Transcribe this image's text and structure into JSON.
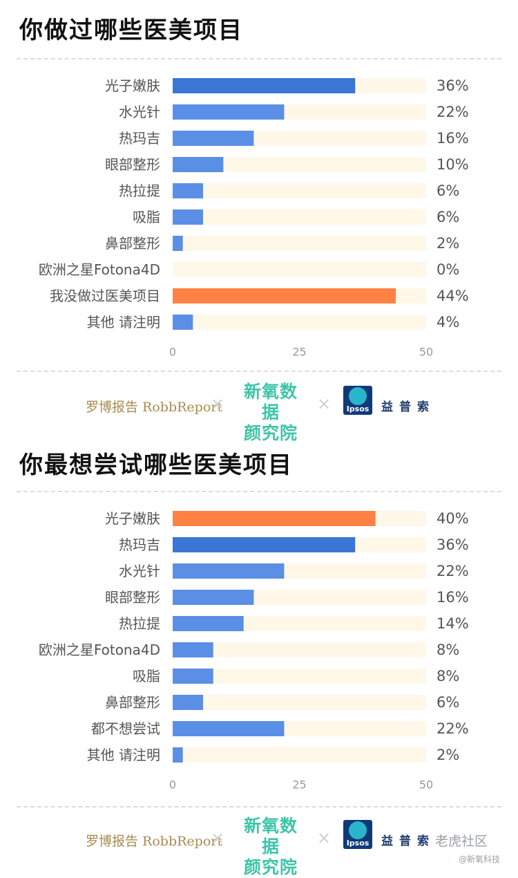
{
  "colors": {
    "bar_primary": "#5b8fe6",
    "bar_top": "#3a76d6",
    "bar_highlight": "#ff8143",
    "track": "#fff8e9",
    "label": "#555555",
    "value": "#555555",
    "tick": "#999999"
  },
  "logos": {
    "robb": "罗博报告 RobbReport",
    "xinyang_line1": "新氧数据",
    "xinyang_line2": "颜究院",
    "ipsos_word": "Ipsos",
    "ipsos_cn": "益普索",
    "separator": "×"
  },
  "watermark": {
    "main": "老虎社区",
    "sub": "@新氧科技"
  },
  "chart_data": [
    {
      "type": "bar",
      "orientation": "horizontal",
      "title": "你做过哪些医美项目",
      "categories": [
        "光子嫩肤",
        "水光针",
        "热玛吉",
        "眼部整形",
        "热拉提",
        "吸脂",
        "鼻部整形",
        "欧洲之星Fotona4D",
        "我没做过医美项目",
        "其他 请注明"
      ],
      "values": [
        36,
        22,
        16,
        10,
        6,
        6,
        2,
        0,
        44,
        4
      ],
      "value_labels": [
        "36%",
        "22%",
        "16%",
        "10%",
        "6%",
        "6%",
        "2%",
        "0%",
        "44%",
        "4%"
      ],
      "highlight_index": 8,
      "top_index": 0,
      "xlim": [
        0,
        50
      ],
      "xticks": [
        "0",
        "25",
        "50"
      ],
      "grid": false
    },
    {
      "type": "bar",
      "orientation": "horizontal",
      "title": "你最想尝试哪些医美项目",
      "categories": [
        "光子嫩肤",
        "热玛吉",
        "水光针",
        "眼部整形",
        "热拉提",
        "欧洲之星Fotona4D",
        "吸脂",
        "鼻部整形",
        "都不想尝试",
        "其他 请注明"
      ],
      "values": [
        40,
        36,
        22,
        16,
        14,
        8,
        8,
        6,
        22,
        2
      ],
      "value_labels": [
        "40%",
        "36%",
        "22%",
        "16%",
        "14%",
        "8%",
        "8%",
        "6%",
        "22%",
        "2%"
      ],
      "highlight_index": 0,
      "top_index": 1,
      "xlim": [
        0,
        50
      ],
      "xticks": [
        "0",
        "25",
        "50"
      ],
      "grid": false
    }
  ]
}
